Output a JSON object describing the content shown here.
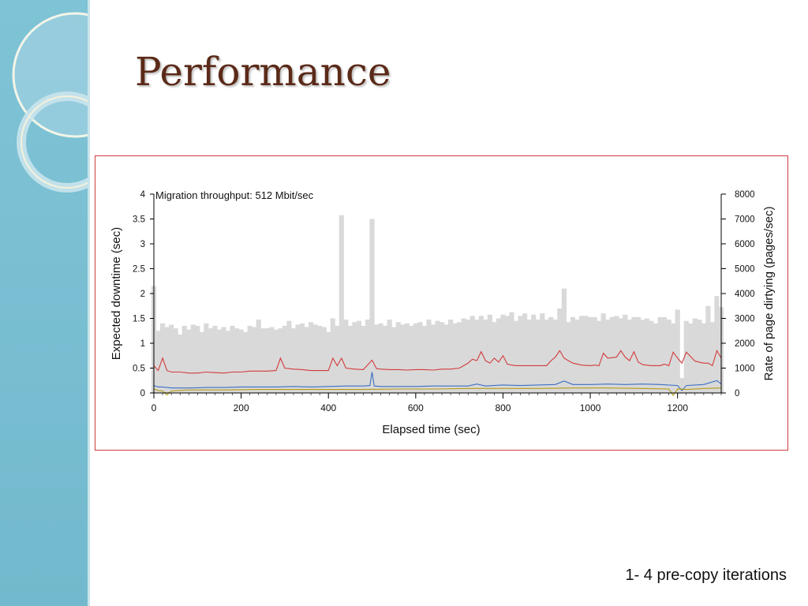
{
  "slide": {
    "title": "Performance",
    "caption": "1- 4 pre-copy iterations",
    "colors": {
      "sidebar": "#7fc3d6",
      "title": "#5b2a18",
      "frame": "#d23b3b"
    }
  },
  "chart_data": {
    "type": "bar",
    "annotation": "Migration throughput: 512 Mbit/sec",
    "xlabel": "Elapsed time (sec)",
    "ylabel_left": "Expected downtime (sec)",
    "ylabel_right": "Rate of page dirtying (pages/sec)",
    "xlim": [
      0,
      1300
    ],
    "ylim_left": [
      0,
      4
    ],
    "ylim_right": [
      0,
      8000
    ],
    "xticks": [
      0,
      200,
      400,
      600,
      800,
      1000,
      1200
    ],
    "yticks_left": [
      0,
      0.5,
      1,
      1.5,
      2,
      2.5,
      3,
      3.5,
      4
    ],
    "yticks_left_labels": [
      "0",
      "0.5",
      "1",
      "1.5",
      "2",
      "2.5",
      "3",
      "3.5",
      "4"
    ],
    "yticks_right": [
      0,
      1000,
      2000,
      3000,
      4000,
      5000,
      6000,
      7000,
      8000
    ],
    "grid": false,
    "bars": {
      "description": "Rate of page dirtying (right axis)",
      "color": "#d9d9d9",
      "x": [
        0,
        10,
        20,
        30,
        40,
        50,
        60,
        70,
        80,
        90,
        100,
        110,
        120,
        130,
        140,
        150,
        160,
        170,
        180,
        190,
        200,
        210,
        220,
        230,
        240,
        250,
        260,
        270,
        280,
        290,
        300,
        310,
        320,
        330,
        340,
        350,
        360,
        370,
        380,
        390,
        400,
        410,
        420,
        430,
        440,
        450,
        460,
        470,
        480,
        490,
        500,
        510,
        520,
        530,
        540,
        550,
        560,
        570,
        580,
        590,
        600,
        610,
        620,
        630,
        640,
        650,
        660,
        670,
        680,
        690,
        700,
        710,
        720,
        730,
        740,
        750,
        760,
        770,
        780,
        790,
        800,
        810,
        820,
        830,
        840,
        850,
        860,
        870,
        880,
        890,
        900,
        910,
        920,
        930,
        940,
        950,
        960,
        970,
        980,
        990,
        1000,
        1010,
        1020,
        1030,
        1040,
        1050,
        1060,
        1070,
        1080,
        1090,
        1100,
        1110,
        1120,
        1130,
        1140,
        1150,
        1160,
        1170,
        1180,
        1190,
        1200,
        1210,
        1220,
        1230,
        1240,
        1250,
        1260,
        1270,
        1280,
        1290,
        1300
      ],
      "values": [
        4300,
        2500,
        2800,
        2650,
        2750,
        2600,
        2350,
        2700,
        2550,
        2750,
        2700,
        2450,
        2800,
        2600,
        2700,
        2550,
        2650,
        2500,
        2700,
        2600,
        2550,
        2450,
        2700,
        2650,
        2950,
        2600,
        2600,
        2650,
        2550,
        2600,
        2700,
        2900,
        2600,
        2750,
        2800,
        2650,
        2850,
        2750,
        2700,
        2650,
        2450,
        3000,
        2700,
        7150,
        2950,
        2700,
        2850,
        2900,
        2700,
        2950,
        7000,
        2750,
        2800,
        2700,
        2950,
        2650,
        2850,
        2750,
        2800,
        2700,
        2800,
        2850,
        2700,
        2950,
        2750,
        2900,
        2850,
        2750,
        2950,
        2800,
        2850,
        3000,
        2950,
        3100,
        2950,
        3100,
        2950,
        3150,
        2850,
        3000,
        3150,
        3100,
        3250,
        2900,
        3100,
        3200,
        2950,
        3150,
        2950,
        3200,
        2950,
        3050,
        2950,
        3400,
        4200,
        2850,
        3050,
        2950,
        3100,
        3100,
        3050,
        3050,
        2900,
        3200,
        2950,
        3050,
        3100,
        3000,
        3150,
        2950,
        3050,
        3050,
        2950,
        3000,
        2900,
        2800,
        3050,
        3050,
        2950,
        2800,
        3350,
        600,
        2900,
        2800,
        3000,
        2950,
        2800,
        3500,
        2850,
        3900,
        3450
      ]
    },
    "series": [
      {
        "color": "#d33b3b",
        "x": [
          0,
          10,
          20,
          30,
          40,
          60,
          80,
          100,
          120,
          140,
          160,
          180,
          200,
          220,
          240,
          260,
          280,
          290,
          300,
          320,
          340,
          360,
          380,
          400,
          410,
          420,
          430,
          440,
          460,
          480,
          500,
          510,
          520,
          540,
          560,
          580,
          600,
          620,
          640,
          660,
          680,
          700,
          710,
          720,
          730,
          740,
          750,
          760,
          770,
          780,
          790,
          800,
          810,
          820,
          830,
          840,
          860,
          880,
          900,
          910,
          920,
          930,
          940,
          950,
          960,
          980,
          1000,
          1010,
          1020,
          1030,
          1040,
          1060,
          1070,
          1080,
          1090,
          1100,
          1110,
          1120,
          1140,
          1160,
          1170,
          1180,
          1190,
          1200,
          1210,
          1220,
          1240,
          1260,
          1270,
          1280,
          1290,
          1300
        ],
        "values": [
          0.55,
          0.45,
          0.7,
          0.45,
          0.42,
          0.42,
          0.4,
          0.4,
          0.42,
          0.41,
          0.4,
          0.42,
          0.42,
          0.44,
          0.44,
          0.44,
          0.45,
          0.7,
          0.5,
          0.48,
          0.47,
          0.45,
          0.45,
          0.45,
          0.7,
          0.55,
          0.7,
          0.5,
          0.48,
          0.47,
          0.66,
          0.49,
          0.48,
          0.47,
          0.47,
          0.46,
          0.47,
          0.47,
          0.46,
          0.48,
          0.48,
          0.5,
          0.55,
          0.6,
          0.68,
          0.65,
          0.83,
          0.65,
          0.6,
          0.7,
          0.62,
          0.75,
          0.58,
          0.56,
          0.55,
          0.55,
          0.55,
          0.55,
          0.55,
          0.65,
          0.72,
          0.85,
          0.7,
          0.65,
          0.6,
          0.56,
          0.55,
          0.56,
          0.55,
          0.8,
          0.7,
          0.72,
          0.85,
          0.72,
          0.65,
          0.83,
          0.62,
          0.57,
          0.55,
          0.55,
          0.58,
          0.55,
          0.82,
          0.7,
          0.6,
          0.82,
          0.64,
          0.6,
          0.6,
          0.55,
          0.85,
          0.7
        ]
      },
      {
        "color": "#3b6fc4",
        "x": [
          0,
          10,
          20,
          40,
          80,
          120,
          160,
          200,
          240,
          280,
          320,
          360,
          400,
          440,
          480,
          495,
          500,
          505,
          520,
          560,
          600,
          640,
          680,
          720,
          740,
          760,
          800,
          840,
          880,
          920,
          940,
          960,
          1000,
          1040,
          1080,
          1120,
          1160,
          1200,
          1210,
          1220,
          1260,
          1290,
          1300
        ],
        "values": [
          0.15,
          0.12,
          0.12,
          0.1,
          0.1,
          0.11,
          0.11,
          0.12,
          0.12,
          0.12,
          0.13,
          0.12,
          0.13,
          0.14,
          0.14,
          0.15,
          0.42,
          0.14,
          0.13,
          0.13,
          0.13,
          0.14,
          0.14,
          0.14,
          0.18,
          0.14,
          0.16,
          0.15,
          0.16,
          0.17,
          0.24,
          0.17,
          0.17,
          0.18,
          0.17,
          0.18,
          0.17,
          0.15,
          0.05,
          0.15,
          0.17,
          0.25,
          0.18
        ]
      },
      {
        "color": "#b59b16",
        "x": [
          0,
          10,
          20,
          30,
          40,
          80,
          160,
          240,
          320,
          400,
          480,
          560,
          640,
          720,
          800,
          880,
          960,
          1040,
          1120,
          1180,
          1190,
          1200,
          1220,
          1260,
          1300
        ],
        "values": [
          0.08,
          0.05,
          0.04,
          -0.04,
          0.04,
          0.06,
          0.06,
          0.07,
          0.07,
          0.07,
          0.07,
          0.08,
          0.08,
          0.09,
          0.09,
          0.09,
          0.1,
          0.1,
          0.09,
          0.08,
          -0.05,
          0.08,
          0.07,
          0.09,
          0.1
        ]
      }
    ]
  }
}
